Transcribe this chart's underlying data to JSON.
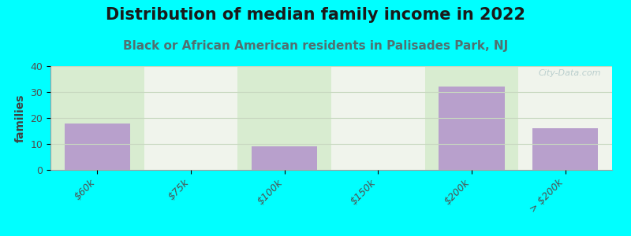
{
  "title": "Distribution of median family income in 2022",
  "subtitle": "Black or African American residents in Palisades Park, NJ",
  "categories": [
    "$60k",
    "$75k",
    "$100k",
    "$150k",
    "$200k",
    "> $200k"
  ],
  "values": [
    18,
    0,
    9,
    0,
    32,
    16
  ],
  "bar_color": "#b8a0cc",
  "ylabel": "families",
  "ylim": [
    0,
    40
  ],
  "yticks": [
    0,
    10,
    20,
    30,
    40
  ],
  "grid_color": "#c8d8c0",
  "background_color": "#00ffff",
  "col_bg_green": "#d8ecd0",
  "col_bg_white": "#f0f4ec",
  "title_fontsize": 15,
  "subtitle_fontsize": 11,
  "title_color": "#1a1a1a",
  "subtitle_color": "#507070",
  "watermark": "City-Data.com",
  "watermark_color": "#b0c8c8"
}
